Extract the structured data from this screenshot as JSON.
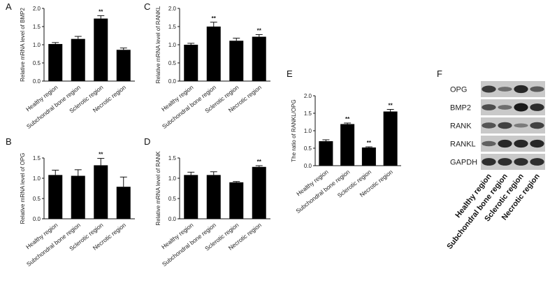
{
  "panels": [
    "A",
    "B",
    "C",
    "D",
    "E",
    "F"
  ],
  "chart_data": [
    {
      "panel": "A",
      "type": "bar",
      "categories": [
        "Healthy region",
        "Subchondral bone region",
        "Sclerotic region",
        "Necrotic region"
      ],
      "values": [
        1.02,
        1.16,
        1.72,
        0.86
      ],
      "errors": [
        0.04,
        0.07,
        0.08,
        0.05
      ],
      "significance": [
        "",
        "",
        "**",
        ""
      ],
      "ylabel": "Relative mRNA level of BMP2",
      "ylim": [
        0,
        2.0
      ],
      "yticks": [
        0.0,
        0.5,
        1.0,
        1.5,
        2.0
      ],
      "ytick_labels": [
        "0.0",
        "0.5",
        "1.0",
        "1.5",
        "2.0"
      ]
    },
    {
      "panel": "B",
      "type": "bar",
      "categories": [
        "Healthy region",
        "Subchondral bone region",
        "Sclerotic region",
        "Necrotic region"
      ],
      "values": [
        1.08,
        1.06,
        1.32,
        0.79
      ],
      "errors": [
        0.12,
        0.15,
        0.17,
        0.24
      ],
      "significance": [
        "",
        "",
        "**",
        ""
      ],
      "ylabel": "Relative mRNA level of OPG",
      "ylim": [
        0,
        1.5
      ],
      "yticks": [
        0.0,
        0.5,
        1.0,
        1.5
      ],
      "ytick_labels": [
        "0.0",
        "0.5",
        "1.0",
        "1.5"
      ]
    },
    {
      "panel": "C",
      "type": "bar",
      "categories": [
        "Healthy region",
        "Subchondral bone region",
        "Sclerotic region",
        "Necrotic region"
      ],
      "values": [
        1.0,
        1.5,
        1.11,
        1.22
      ],
      "errors": [
        0.04,
        0.12,
        0.07,
        0.06
      ],
      "significance": [
        "",
        "**",
        "",
        "**"
      ],
      "ylabel": "Relative mRNA level of RANKL",
      "ylim": [
        0,
        2.0
      ],
      "yticks": [
        0.0,
        0.5,
        1.0,
        1.5,
        2.0
      ],
      "ytick_labels": [
        "0.0",
        "0.5",
        "1.0",
        "1.5",
        "2.0"
      ]
    },
    {
      "panel": "D",
      "type": "bar",
      "categories": [
        "Healthy region",
        "Subchondral bone region",
        "Sclerotic region",
        "Necrotic region"
      ],
      "values": [
        1.08,
        1.08,
        0.9,
        1.28
      ],
      "errors": [
        0.07,
        0.08,
        0.02,
        0.03
      ],
      "significance": [
        "",
        "",
        "",
        "**"
      ],
      "ylabel": "Relative mRNA level of RANK",
      "ylim": [
        0,
        1.5
      ],
      "yticks": [
        0.0,
        0.5,
        1.0,
        1.5
      ],
      "ytick_labels": [
        "0.0",
        "0.5",
        "1.0",
        "1.5"
      ]
    },
    {
      "panel": "E",
      "type": "bar",
      "categories": [
        "Healthy region",
        "Subchondral bone region",
        "Sclerotic region",
        "Necrotic region"
      ],
      "values": [
        0.7,
        1.19,
        0.52,
        1.55
      ],
      "errors": [
        0.04,
        0.03,
        0.02,
        0.06
      ],
      "significance": [
        "",
        "**",
        "**",
        "**"
      ],
      "ylabel": "The ratio of RANKL/OPG",
      "ylim": [
        0,
        2.0
      ],
      "yticks": [
        0.0,
        0.5,
        1.0,
        1.5,
        2.0
      ],
      "ytick_labels": [
        "0.0",
        "0.5",
        "1.0",
        "1.5",
        "2.0"
      ]
    }
  ],
  "western_blot": {
    "panel": "F",
    "bands": [
      "OPG",
      "BMP2",
      "RANK",
      "RANKL",
      "GAPDH"
    ],
    "lanes": [
      "Healthy region",
      "Subchondral bone region",
      "Sclerotic region",
      "Necrotic region"
    ],
    "intensity": [
      [
        0.75,
        0.35,
        0.9,
        0.5
      ],
      [
        0.6,
        0.35,
        1.0,
        0.85
      ],
      [
        0.55,
        0.7,
        0.25,
        0.7
      ],
      [
        0.45,
        0.9,
        0.9,
        0.9
      ],
      [
        0.85,
        0.85,
        0.85,
        0.85
      ]
    ],
    "band_color": "#111111",
    "background_color": "#c9c9c9"
  },
  "colors": {
    "bar": "#000000",
    "axis": "#111111"
  }
}
